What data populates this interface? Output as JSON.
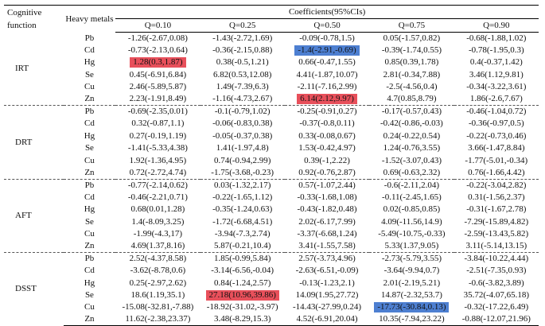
{
  "header": {
    "cognitive_function": "Cognitive function",
    "heavy_metals": "Heavy metals",
    "coefficients": "Coefficients(95%CIs)",
    "quantiles": [
      "Q=0.10",
      "Q=0.25",
      "Q=0.50",
      "Q=0.75",
      "Q=0.90"
    ]
  },
  "colors": {
    "highlight_red": "#e8505b",
    "highlight_blue": "#4d7fd1"
  },
  "groups": [
    {
      "name": "IRT",
      "rows": [
        {
          "metal": "Pb",
          "values": [
            "-1.26(-2.67,0.08)",
            "-1.43(-2.72,1.69)",
            "-0.09(-0.78,1.5)",
            "0.05(-1.57,0.82)",
            "-0.68(-1.88,1.02)"
          ]
        },
        {
          "metal": "Cd",
          "values": [
            "-0.73(-2.13,0.64)",
            "-0.36(-2.15,0.88)",
            "-1.4(-2.91,-0.69)",
            "-0.39(-1.74,0.55)",
            "-0.78(-1.95,0.3)"
          ]
        },
        {
          "metal": "Hg",
          "values": [
            "1.28(0.3,1.87)",
            "0.38(-0.5,1.21)",
            "0.66(-0.47,1.55)",
            "0.85(0.39,1.78)",
            "0.4(-0.37,1.42)"
          ]
        },
        {
          "metal": "Se",
          "values": [
            "0.45(-6.91,6.84)",
            "6.82(0.53,12.08)",
            "4.41(-1.87,10.07)",
            "2.81(-0.34,7.88)",
            "3.46(1.12,9.81)"
          ]
        },
        {
          "metal": "Cu",
          "values": [
            "2.46(-5.89,5.87)",
            "1.49(-7.39,6.3)",
            "-2.11(-7.16,2.99)",
            "-2.5(-4.56,0.4)",
            "-0.34(-3.22,3.61)"
          ]
        },
        {
          "metal": "Zn",
          "values": [
            "2.23(-1.91,8.49)",
            "-1.16(-4.73,2.67)",
            "6.14(2.12,9.97)",
            "4.7(0.85,8.79)",
            "1.86(-2.6,7.67)"
          ]
        }
      ]
    },
    {
      "name": "DRT",
      "rows": [
        {
          "metal": "Pb",
          "values": [
            "-0.69(-2.35,0.01)",
            "-0.1(-0.79,1.02)",
            "-0.25(-0.91,0.27)",
            "-0.17(-0.57,0.43)",
            "-0.46(-1.04,0.72)"
          ]
        },
        {
          "metal": "Cd",
          "values": [
            "0.32(-0.87,1.1)",
            "-0.06(-0.83,0.38)",
            "-0.37(-0.8,0.11)",
            "-0.42(-0.86,-0.03)",
            "-0.36(-0.97,0.5)"
          ]
        },
        {
          "metal": "Hg",
          "values": [
            "0.27(-0.19,1.19)",
            "-0.05(-0.37,0.38)",
            "0.33(-0.08,0.67)",
            "0.24(-0.22,0.54)",
            "-0.22(-0.73,0.46)"
          ]
        },
        {
          "metal": "Se",
          "values": [
            "-1.41(-5.33,4.38)",
            "1.41(-1.97,4.8)",
            "1.53(-0.42,4.97)",
            "1.24(-0.76,3.55)",
            "3.66(-1.47,8.84)"
          ]
        },
        {
          "metal": "Cu",
          "values": [
            "1.92(-1.36,4.95)",
            "0.74(-0.94,2.99)",
            "0.39(-1,2.22)",
            "-1.52(-3.07,0.43)",
            "-1.77(-5.01,-0.34)"
          ]
        },
        {
          "metal": "Zn",
          "values": [
            "0.72(-2.72,4.74)",
            "-1.75(-3.68,-0.23)",
            "0.92(-0.76,2.87)",
            "0.69(-0.63,2.32)",
            "0.76(-1.66,4.42)"
          ]
        }
      ]
    },
    {
      "name": "AFT",
      "rows": [
        {
          "metal": "Pb",
          "values": [
            "-0.77(-2.14,0.62)",
            "0.03(-1.32,2.17)",
            "0.57(-1.07,2.44)",
            "-0.6(-2.11,2.04)",
            "-0.22(-3.04,2.82)"
          ]
        },
        {
          "metal": "Cd",
          "values": [
            "-0.46(-2.21,0.71)",
            "-0.22(-1.65,1.12)",
            "-0.33(-1.68,1.08)",
            "-0.11(-2.45,1.65)",
            "0.31(-1.56,2.37)"
          ]
        },
        {
          "metal": "Hg",
          "values": [
            "0.68(0.01,1.28)",
            "-0.35(-1.24,0.63)",
            "-0.43(-1.82,0.48)",
            "0.02(-0.85,0.85)",
            "-0.31(-1.67,2.78)"
          ]
        },
        {
          "metal": "Se",
          "values": [
            "1.4(-8.09,3.25)",
            "-1.72(-6.68,4.51)",
            "2.02(-6.17,7.99)",
            "4.09(-11.56,14.9)",
            "-7.29(-15.89,4.82)"
          ]
        },
        {
          "metal": "Cu",
          "values": [
            "-1.99(-4.3,17)",
            "-3.94(-7.3,2.74)",
            "-3.37(-6.68,1.24)",
            "-5.49(-10.75,-0.33)",
            "-2.59(-13.43,5.82)"
          ]
        },
        {
          "metal": "Zn",
          "values": [
            "4.69(1.37,8.16)",
            "5.87(-0.21,10.4)",
            "3.41(-1.55,7.58)",
            "5.33(1.37,9.05)",
            "3.11(-5.14,13.15)"
          ]
        }
      ]
    },
    {
      "name": "DSST",
      "rows": [
        {
          "metal": "Pb",
          "values": [
            "2.52(-4.37,8.58)",
            "1.85(-0.99,5.84)",
            "2.57(-3.73,4.96)",
            "-2.73(-5.79,3.55)",
            "-3.84(-10.22,4.44)"
          ]
        },
        {
          "metal": "Cd",
          "values": [
            "-3.62(-8.78,0.6)",
            "-3.14(-6.56,-0.04)",
            "-2.63(-6.51,-0.09)",
            "-3.64(-9.94,0.7)",
            "-2.51(-7.35,0.93)"
          ]
        },
        {
          "metal": "Hg",
          "values": [
            "0.25(-2.97,2.62)",
            "0.84(-1.24,2.57)",
            "-0.13(-1.23,2.1)",
            "2.01(-2.19,5.21)",
            "-0.6(-3.82,3.89)"
          ]
        },
        {
          "metal": "Se",
          "values": [
            "18.6(1.19,35.1)",
            "27.18(10.96,39.86)",
            "14.09(1.95,27.72)",
            "14.87(-2.32,53.7)",
            "35.72(-4.07,65.18)"
          ]
        },
        {
          "metal": "Cu",
          "values": [
            "-15.08(-32.81,-7.88)",
            "-18.92(-31.02,-3.97)",
            "-14.43(-27.99,0.24)",
            "-17.73(-30.84,0.13)",
            "-0.32(-17.22,6.49)"
          ]
        },
        {
          "metal": "Zn",
          "values": [
            "11.62(-2.38,23.37)",
            "3.48(-8.29,15.3)",
            "4.52(-6.91,20.04)",
            "10.35(-7.94,23.22)",
            "-0.88(-12.07,21.96)"
          ]
        }
      ]
    }
  ],
  "highlights": [
    {
      "group": 0,
      "row": 2,
      "col": 0,
      "color": "red"
    },
    {
      "group": 0,
      "row": 1,
      "col": 2,
      "color": "blue"
    },
    {
      "group": 0,
      "row": 5,
      "col": 2,
      "color": "red"
    },
    {
      "group": 3,
      "row": 3,
      "col": 1,
      "color": "red"
    },
    {
      "group": 3,
      "row": 4,
      "col": 3,
      "color": "blue"
    }
  ]
}
